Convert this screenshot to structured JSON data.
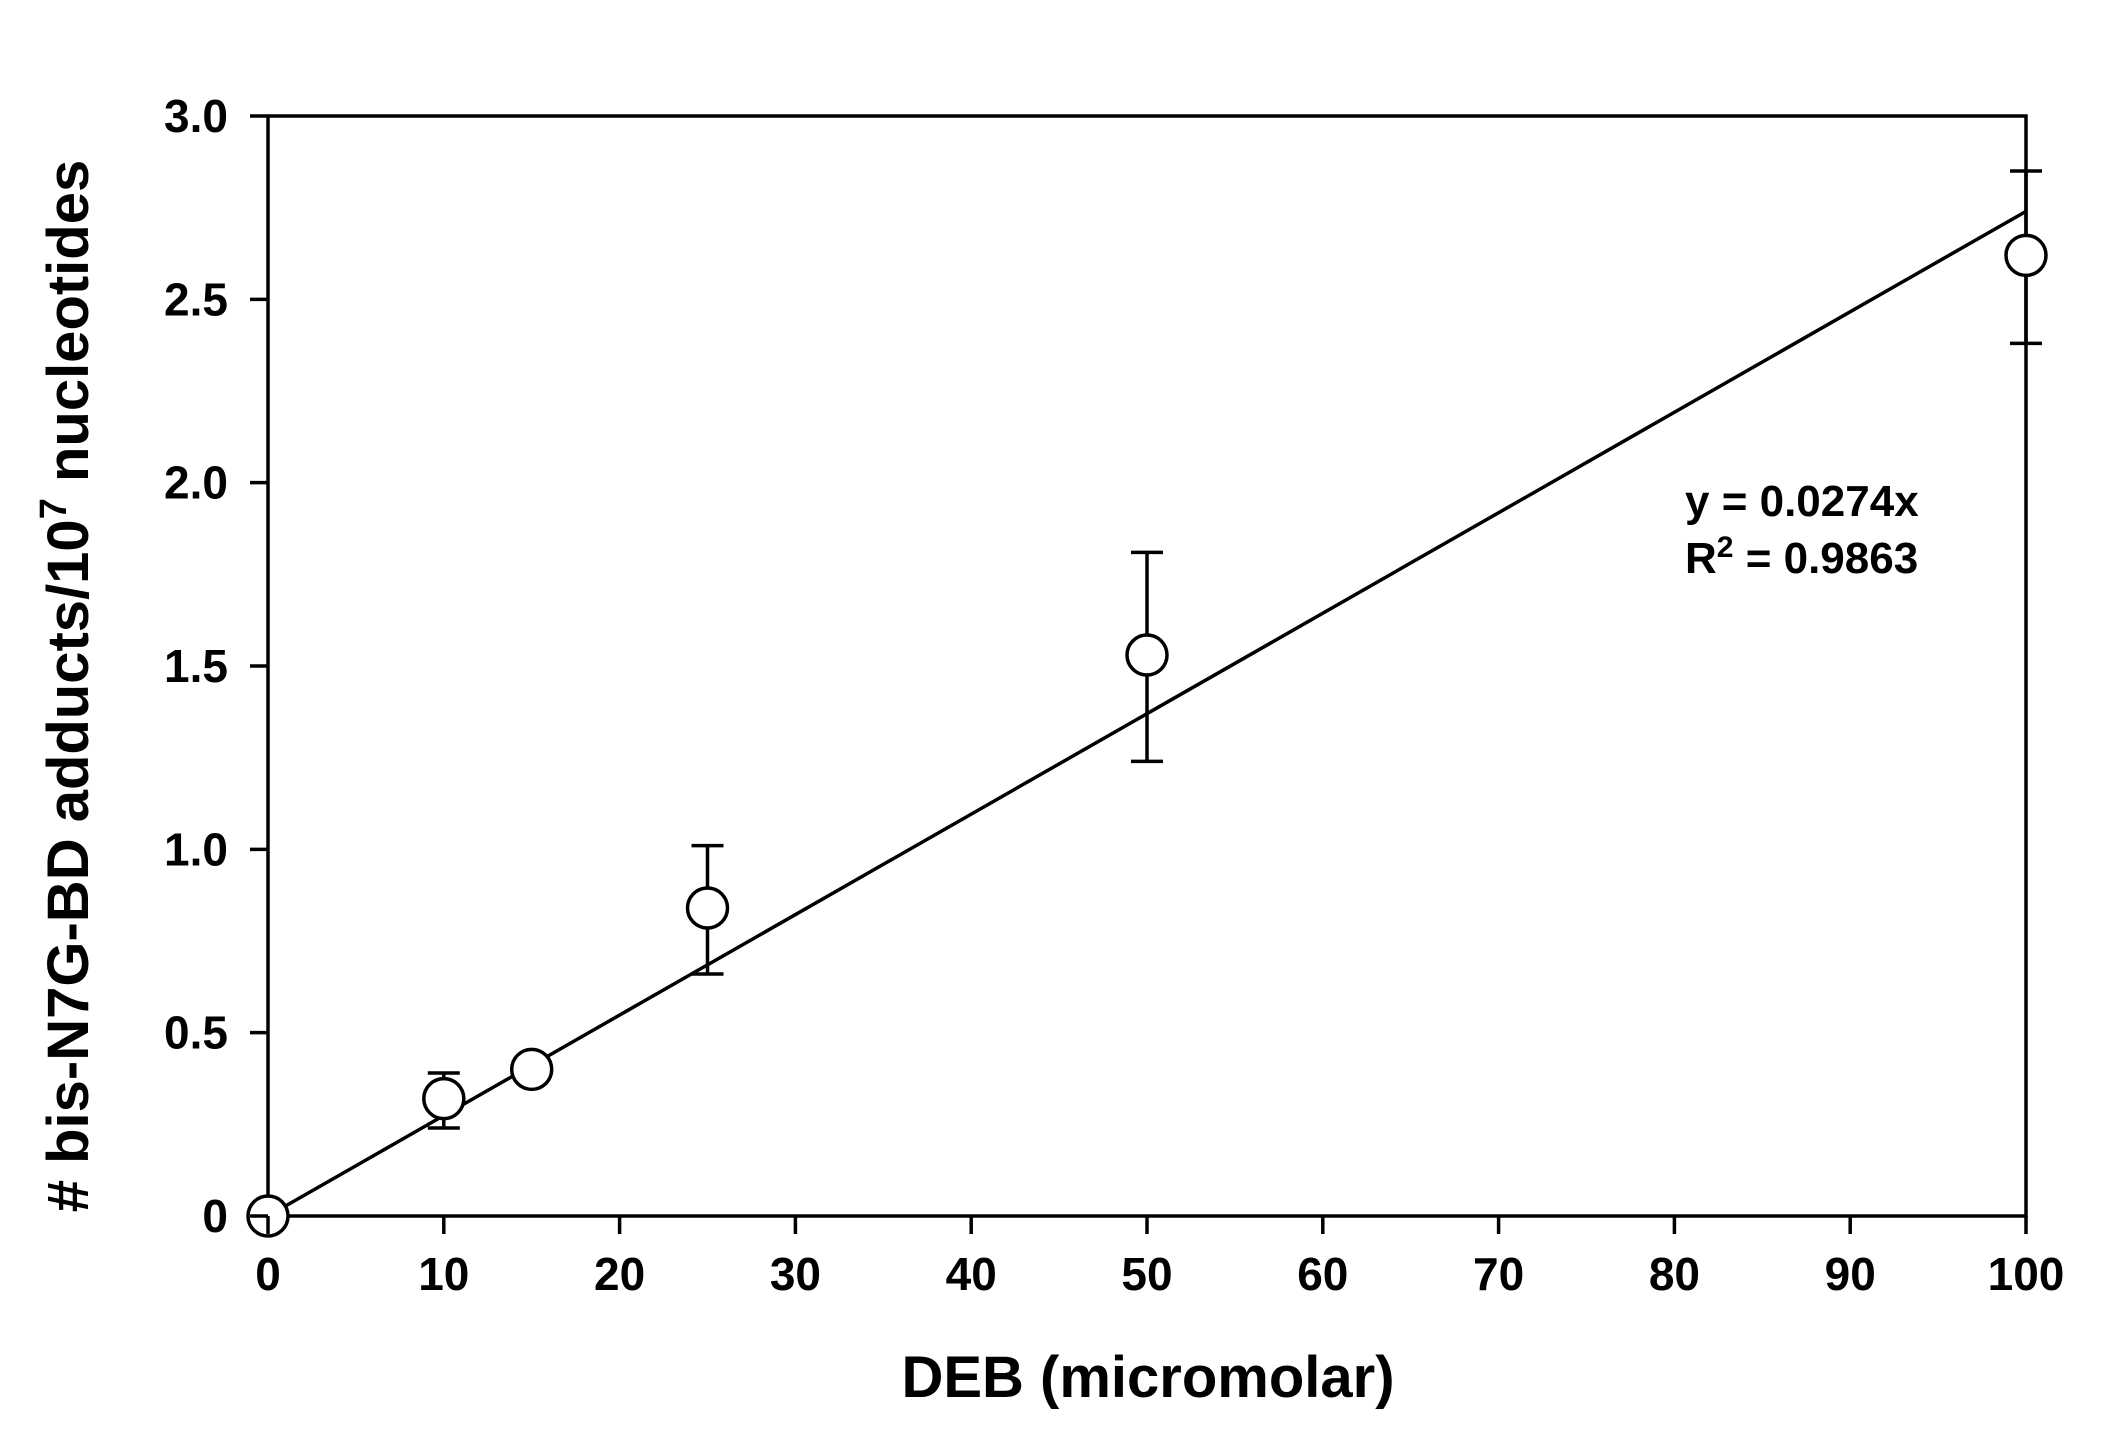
{
  "chart_data": {
    "type": "scatter",
    "xlabel": "DEB (micromolar)",
    "ylabel": {
      "main": "# bis-N7G-BD adducts/10",
      "superscript": "7",
      "suffix": " nucleotides"
    },
    "xlim": [
      0,
      100
    ],
    "ylim": [
      0,
      3.0
    ],
    "x_ticks": [
      0,
      10,
      20,
      30,
      40,
      50,
      60,
      70,
      80,
      90,
      100
    ],
    "x_tick_labels": [
      "0",
      "10",
      "20",
      "30",
      "40",
      "50",
      "60",
      "70",
      "80",
      "90",
      "100"
    ],
    "y_ticks": [
      0,
      0.5,
      1.0,
      1.5,
      2.0,
      2.5,
      3.0
    ],
    "y_tick_labels": [
      "0",
      "0.5",
      "1.0",
      "1.5",
      "2.0",
      "2.5",
      "3.0"
    ],
    "grid": false,
    "marker": "open-circle",
    "points": [
      {
        "x": 0,
        "y": 0.0,
        "err_low": 0.0,
        "err_high": 0.0
      },
      {
        "x": 10,
        "y": 0.32,
        "err_low": 0.24,
        "err_high": 0.39
      },
      {
        "x": 15,
        "y": 0.4,
        "err_low": 0.4,
        "err_high": 0.4
      },
      {
        "x": 25,
        "y": 0.84,
        "err_low": 0.66,
        "err_high": 1.01
      },
      {
        "x": 50,
        "y": 1.53,
        "err_low": 1.24,
        "err_high": 1.81
      },
      {
        "x": 100,
        "y": 2.62,
        "err_low": 2.38,
        "err_high": 2.85
      }
    ],
    "fit": {
      "type": "linear-through-origin",
      "slope": 0.0274,
      "x_range": [
        0,
        100
      ]
    },
    "annotation": {
      "line1": "y = 0.0274x",
      "line2_prefix": "R",
      "line2_sup": "2",
      "line2_suffix": " = 0.9863"
    }
  }
}
